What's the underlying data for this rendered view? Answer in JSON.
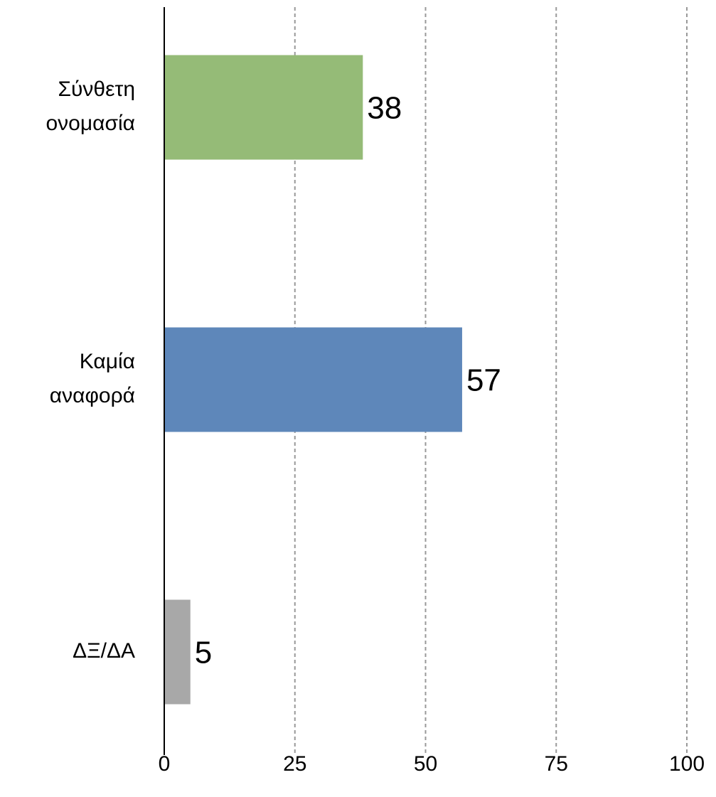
{
  "chart_data": {
    "type": "bar",
    "orientation": "horizontal",
    "categories": [
      "Σύνθετη ονομασία",
      "Καμία αναφορά",
      "ΔΞ/ΔΑ"
    ],
    "values": [
      38,
      57,
      5
    ],
    "colors": [
      "#95bb77",
      "#5e87ba",
      "#a8a8a8"
    ],
    "xlim": [
      0,
      100
    ],
    "xticks": [
      0,
      25,
      50,
      75,
      100
    ],
    "grid": true
  }
}
